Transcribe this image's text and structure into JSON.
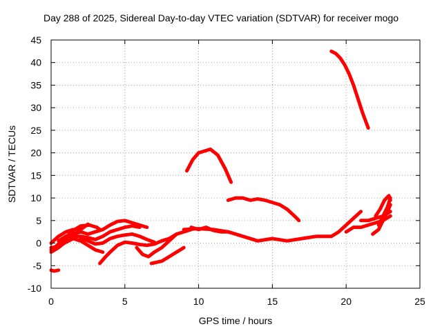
{
  "chart_data": {
    "type": "line",
    "title": "Day 288 of 2025, Sidereal Day-to-day VTEC variation (SDTVAR) for receiver mogo",
    "xlabel": "GPS time / hours",
    "ylabel": "SDTVAR / TECUs",
    "xlim": [
      0,
      25
    ],
    "ylim": [
      -10,
      45
    ],
    "xticks": [
      0,
      5,
      10,
      15,
      20,
      25
    ],
    "yticks": [
      -10,
      -5,
      0,
      5,
      10,
      15,
      20,
      25,
      30,
      35,
      40,
      45
    ],
    "grid": true,
    "legend": "none",
    "color": "#ff0000",
    "series": [
      {
        "x": [
          0.0,
          0.4,
          0.9,
          1.5,
          2.0,
          2.6,
          3.1,
          3.3
        ],
        "y": [
          -1.5,
          -0.5,
          1.0,
          2.8,
          3.8,
          4.0,
          3.5,
          3.0
        ]
      },
      {
        "x": [
          0.0,
          0.5,
          1.0,
          1.5,
          2.0,
          2.5
        ],
        "y": [
          -2.0,
          -1.0,
          0.3,
          1.8,
          3.0,
          4.2
        ]
      },
      {
        "x": [
          0.0,
          0.5,
          1.0,
          1.5
        ],
        "y": [
          0.0,
          1.5,
          2.5,
          3.0
        ]
      },
      {
        "x": [
          0.0,
          0.5,
          1.0,
          1.5,
          2.0,
          2.5,
          3.0,
          3.5
        ],
        "y": [
          -1.0,
          -0.8,
          0.2,
          1.0,
          0.5,
          -0.5,
          -1.5,
          -2.0
        ]
      },
      {
        "x": [
          0.5,
          1.0,
          1.5,
          2.0,
          2.5,
          3.0,
          3.5,
          4.0,
          4.5,
          5.0,
          5.5,
          6.0,
          6.5
        ],
        "y": [
          0.5,
          1.5,
          2.0,
          2.5,
          2.0,
          2.5,
          3.0,
          4.0,
          4.8,
          5.0,
          4.5,
          4.0,
          3.5
        ]
      },
      {
        "x": [
          1.0,
          1.5,
          2.0,
          2.5,
          3.0,
          3.5,
          4.0,
          4.5,
          5.0,
          5.5,
          6.0
        ],
        "y": [
          1.0,
          1.5,
          1.5,
          1.2,
          0.8,
          1.5,
          2.5,
          3.0,
          3.5,
          3.8,
          3.5
        ]
      },
      {
        "x": [
          2.0,
          2.5,
          3.0,
          3.5,
          4.0,
          4.5,
          5.0,
          5.5,
          6.0,
          6.5,
          7.0
        ],
        "y": [
          1.2,
          0.5,
          -0.2,
          0.0,
          1.0,
          1.5,
          1.8,
          2.0,
          1.5,
          0.8,
          0.2
        ]
      },
      {
        "x": [
          3.3,
          3.7,
          4.0,
          4.5,
          5.0,
          5.5,
          6.0,
          6.5,
          7.0,
          7.5,
          8.0,
          8.5,
          9.0,
          9.5
        ],
        "y": [
          -4.5,
          -3.0,
          -2.0,
          -0.5,
          0.2,
          0.0,
          -0.3,
          -0.5,
          -0.2,
          0.5,
          1.0,
          2.0,
          2.5,
          3.0
        ]
      },
      {
        "x": [
          5.8,
          6.2,
          6.6,
          7.0,
          7.5,
          8.0,
          8.5
        ],
        "y": [
          -1.0,
          -2.5,
          -3.0,
          -2.0,
          -1.0,
          0.5,
          2.0
        ]
      },
      {
        "x": [
          6.8,
          7.5,
          8.0,
          8.5,
          9.0
        ],
        "y": [
          -4.5,
          -4.0,
          -3.0,
          -2.0,
          -1.0
        ]
      },
      {
        "x": [
          9.0,
          10.0,
          11.0,
          12.0,
          13.0,
          14.0,
          15.0,
          16.0,
          17.0,
          18.0,
          19.0,
          19.5,
          20.0,
          20.5,
          21.0
        ],
        "y": [
          3.0,
          3.2,
          3.0,
          2.5,
          1.5,
          0.5,
          1.0,
          0.5,
          1.0,
          1.5,
          1.5,
          2.5,
          4.0,
          5.5,
          7.0
        ]
      },
      {
        "x": [
          9.5,
          10.0,
          10.5,
          11.0,
          11.5,
          12.0
        ],
        "y": [
          3.5,
          3.0,
          3.5,
          2.8,
          2.5,
          2.5
        ]
      },
      {
        "x": [
          9.2,
          9.6,
          10.0,
          10.5,
          10.8,
          11.3,
          11.8,
          12.2
        ],
        "y": [
          16.0,
          18.5,
          20.0,
          20.5,
          20.8,
          19.5,
          16.5,
          13.5
        ]
      },
      {
        "x": [
          12.0,
          12.5,
          13.0,
          13.5,
          14.0,
          14.5,
          15.0,
          15.5,
          16.0,
          16.5,
          16.8
        ],
        "y": [
          9.5,
          10.0,
          10.0,
          9.5,
          9.8,
          9.5,
          9.0,
          8.5,
          7.5,
          6.0,
          5.0
        ]
      },
      {
        "x": [
          19.0,
          19.3,
          19.6,
          19.9,
          20.2,
          20.5,
          20.8,
          21.1,
          21.5
        ],
        "y": [
          42.5,
          42.0,
          41.0,
          39.5,
          37.5,
          35.0,
          32.0,
          29.0,
          25.5
        ]
      },
      {
        "x": [
          20.0,
          20.5,
          21.0,
          21.5,
          22.0,
          22.5,
          23.0
        ],
        "y": [
          2.5,
          3.5,
          3.5,
          4.0,
          4.5,
          5.0,
          6.0
        ]
      },
      {
        "x": [
          21.0,
          21.5,
          22.0,
          22.5,
          23.0
        ],
        "y": [
          5.0,
          5.0,
          5.5,
          6.0,
          7.0
        ]
      },
      {
        "x": [
          21.8,
          22.2,
          22.5,
          22.8,
          23.0
        ],
        "y": [
          2.0,
          3.0,
          5.0,
          7.0,
          8.5
        ]
      },
      {
        "x": [
          22.0,
          22.3,
          22.6,
          22.9,
          23.0
        ],
        "y": [
          6.0,
          7.5,
          9.5,
          10.5,
          9.5
        ]
      },
      {
        "x": [
          22.2,
          22.5,
          22.8,
          23.0
        ],
        "y": [
          4.0,
          6.0,
          8.0,
          10.0
        ]
      },
      {
        "x": [
          0.0,
          0.2,
          0.5
        ],
        "y": [
          -6.0,
          -6.2,
          -6.0
        ]
      }
    ]
  }
}
